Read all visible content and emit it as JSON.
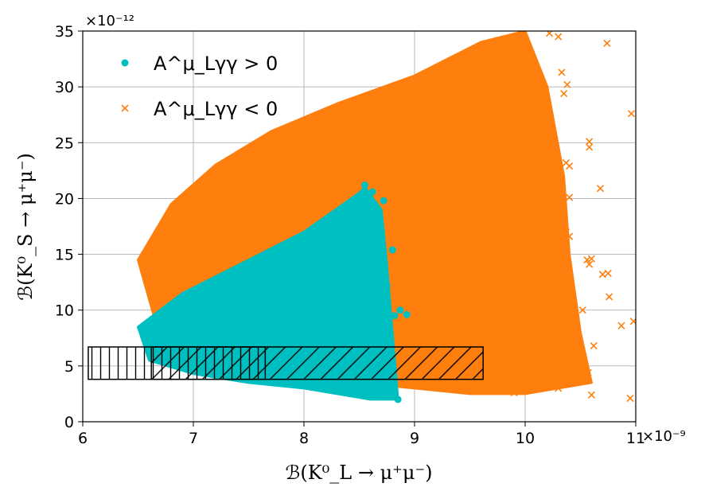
{
  "chart_data": {
    "type": "scatter",
    "title": "",
    "xlabel": "ℬ(K⁰_L → μ⁺μ⁻)",
    "ylabel": "ℬ(K⁰_S → μ⁺μ⁻)",
    "x_offset_label": "×10⁻⁹",
    "y_offset_label": "×10⁻¹²",
    "xlim": [
      6,
      11
    ],
    "ylim": [
      0,
      35
    ],
    "x_ticks": [
      "6",
      "7",
      "8",
      "9",
      "10",
      "11"
    ],
    "y_ticks": [
      "0",
      "5",
      "10",
      "15",
      "20",
      "25",
      "30",
      "35"
    ],
    "grid": true,
    "legend_position": "top-left",
    "series": [
      {
        "name": "A^μ_Lγγ > 0",
        "marker": "circle",
        "color": "#00bfc0",
        "region_outline": [
          [
            6.5,
            8.5
          ],
          [
            6.9,
            11.5
          ],
          [
            7.5,
            14.5
          ],
          [
            8.0,
            17.0
          ],
          [
            8.5,
            20.5
          ],
          [
            8.55,
            21.0
          ],
          [
            8.7,
            19.0
          ],
          [
            8.75,
            14.0
          ],
          [
            8.8,
            8.0
          ],
          [
            8.85,
            2.0
          ],
          [
            8.6,
            2.0
          ],
          [
            8.0,
            3.0
          ],
          [
            7.5,
            3.5
          ],
          [
            7.0,
            4.3
          ],
          [
            6.6,
            5.5
          ]
        ],
        "outliers": [
          [
            8.55,
            21.2
          ],
          [
            8.62,
            20.6
          ],
          [
            8.72,
            19.8
          ],
          [
            8.63,
            18.1
          ],
          [
            8.7,
            17.2
          ],
          [
            8.67,
            15.6
          ],
          [
            8.8,
            15.4
          ],
          [
            8.68,
            13.5
          ],
          [
            8.75,
            12.2
          ],
          [
            8.73,
            10.8
          ],
          [
            8.87,
            10.0
          ],
          [
            8.82,
            9.5
          ],
          [
            8.68,
            8.1
          ],
          [
            8.78,
            7.5
          ],
          [
            8.93,
            9.6
          ],
          [
            8.85,
            2.0
          ],
          [
            8.72,
            2.6
          ],
          [
            8.45,
            2.5
          ]
        ]
      },
      {
        "name": "A^μ_Lγγ < 0",
        "marker": "x",
        "color": "#ff7f0e",
        "region_outline": [
          [
            6.5,
            14.5
          ],
          [
            6.8,
            19.5
          ],
          [
            7.2,
            23.0
          ],
          [
            7.7,
            26.0
          ],
          [
            8.3,
            28.5
          ],
          [
            9.0,
            31.0
          ],
          [
            9.6,
            34.0
          ],
          [
            10.0,
            35.0
          ],
          [
            10.2,
            30.0
          ],
          [
            10.35,
            22.0
          ],
          [
            10.4,
            15.0
          ],
          [
            10.5,
            8.0
          ],
          [
            10.6,
            3.5
          ],
          [
            10.0,
            2.5
          ],
          [
            9.5,
            2.5
          ],
          [
            9.0,
            3.0
          ],
          [
            8.5,
            3.5
          ],
          [
            8.0,
            4.0
          ],
          [
            7.5,
            4.5
          ],
          [
            7.0,
            5.5
          ],
          [
            6.7,
            7.5
          ]
        ],
        "outliers": [
          [
            10.74,
            33.9
          ],
          [
            10.96,
            27.6
          ],
          [
            10.3,
            34.5
          ],
          [
            10.22,
            34.8
          ],
          [
            10.33,
            31.3
          ],
          [
            10.38,
            30.2
          ],
          [
            10.35,
            29.4
          ],
          [
            10.58,
            25.1
          ],
          [
            10.58,
            24.6
          ],
          [
            10.37,
            23.2
          ],
          [
            10.4,
            22.9
          ],
          [
            10.68,
            20.9
          ],
          [
            10.4,
            20.1
          ],
          [
            10.37,
            17.0
          ],
          [
            10.4,
            16.6
          ],
          [
            10.56,
            14.5
          ],
          [
            10.6,
            14.6
          ],
          [
            10.58,
            14.1
          ],
          [
            10.7,
            13.2
          ],
          [
            10.75,
            13.3
          ],
          [
            10.76,
            11.2
          ],
          [
            10.52,
            10.0
          ],
          [
            10.98,
            9.0
          ],
          [
            10.87,
            8.6
          ],
          [
            10.62,
            6.8
          ],
          [
            10.5,
            6.4
          ],
          [
            10.5,
            4.4
          ],
          [
            10.57,
            4.4
          ],
          [
            10.38,
            3.4
          ],
          [
            10.42,
            3.5
          ],
          [
            10.6,
            2.4
          ],
          [
            10.95,
            2.1
          ],
          [
            10.3,
            3.0
          ],
          [
            10.45,
            3.8
          ],
          [
            9.9,
            2.6
          ]
        ]
      }
    ],
    "shaded_regions": [
      {
        "hatch": "vertical",
        "x": [
          6.05,
          7.65
        ],
        "y": [
          3.8,
          6.7
        ]
      },
      {
        "hatch": "diagonal",
        "x": [
          6.62,
          9.62
        ],
        "y": [
          3.8,
          6.7
        ]
      }
    ]
  }
}
